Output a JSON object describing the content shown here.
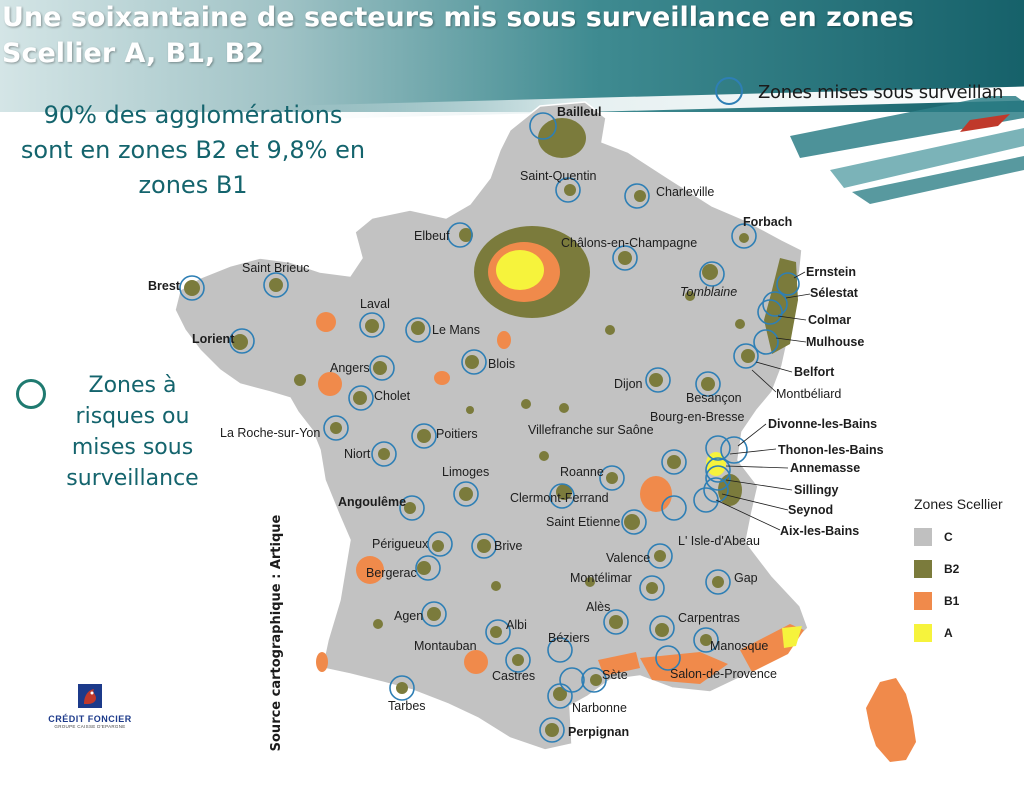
{
  "header": {
    "title_line1": "Une soixantaine de secteurs mis sous surveillance en zones",
    "title_line2": "Scellier A, B1, B2"
  },
  "stat_text": {
    "line1": "90%  des agglomérations",
    "line2": "sont en zones B2 et 9,8% en",
    "line3": "zones B1"
  },
  "legend_top": {
    "label": "Zones mises sous surveillan"
  },
  "left_legend": {
    "lines": [
      "Zones à",
      "risques ou",
      "mises sous",
      "surveillance"
    ]
  },
  "source": "Source cartographique : Artique",
  "zones_legend": {
    "title": "Zones Scellier",
    "items": [
      {
        "label": "C",
        "color": "#c0c0c0"
      },
      {
        "label": "B2",
        "color": "#7b7b3c"
      },
      {
        "label": "B1",
        "color": "#f08a4b"
      },
      {
        "label": "A",
        "color": "#f6f33c"
      }
    ]
  },
  "logo": {
    "name": "CRÉDIT FONCIER",
    "sub": "GROUPE CAISSE D'EPARGNE"
  },
  "cities": [
    "Bailleul",
    "Saint-Quentin",
    "Charleville",
    "Forbach",
    "Elbeuf",
    "Châlons-en-Champagne",
    "Ernstein",
    "Tomblaine",
    "Sélestat",
    "Saint Brieuc",
    "Brest",
    "Colmar",
    "Laval",
    "Le Mans",
    "Mulhouse",
    "Lorient",
    "Angers",
    "Blois",
    "Belfort",
    "Montbéliard",
    "Dijon",
    "Besançon",
    "Cholet",
    "Bourg-en-Bresse",
    "Divonne-les-Bains",
    "Poitiers",
    "Villefranche sur Saône",
    "La Roche-sur-Yon",
    "Thonon-les-Bains",
    "Niort",
    "Annemasse",
    "Limoges",
    "Roanne",
    "Sillingy",
    "Clermont-Ferrand",
    "Angoulême",
    "Seynod",
    "Aix-les-Bains",
    "Saint Etienne",
    "L' Isle-d'Abeau",
    "Périgueux",
    "Brive",
    "Valence",
    "Bergerac",
    "Montélimar",
    "Gap",
    "Alès",
    "Agen",
    "Carpentras",
    "Albi",
    "Béziers",
    "Montauban",
    "Manosque",
    "Castres",
    "Sète",
    "Salon-de-Provence",
    "Tarbes",
    "Narbonne",
    "Perpignan"
  ]
}
